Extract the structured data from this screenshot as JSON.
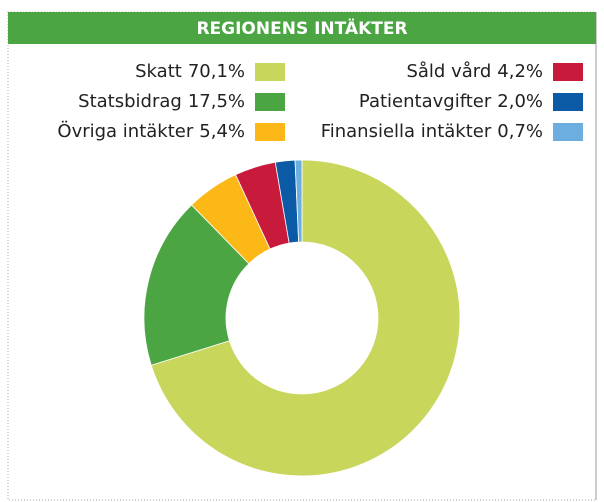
{
  "chart_data": {
    "type": "donut",
    "title": "REGIONENS INTÄKTER",
    "categories": [
      "Skatt",
      "Statsbidrag",
      "Övriga intäkter",
      "Såld vård",
      "Patientavgifter",
      "Finansiella intäkter"
    ],
    "values": [
      70.1,
      17.5,
      5.4,
      4.2,
      2.0,
      0.7
    ],
    "value_labels": [
      "70,1%",
      "17,5%",
      "5,4%",
      "4,2%",
      "2,0%",
      "0,7%"
    ],
    "colors": [
      "#c9d65c",
      "#4ca543",
      "#fbb817",
      "#c81a3b",
      "#0b5aa5",
      "#6daee0"
    ]
  }
}
